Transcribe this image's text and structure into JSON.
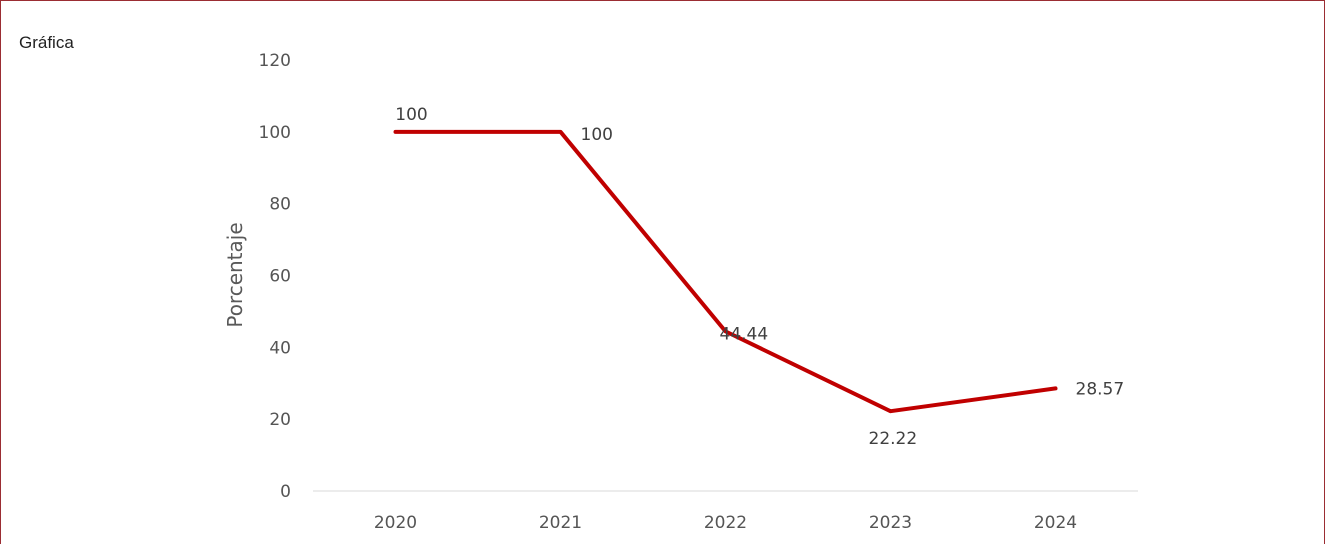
{
  "panel_label": "Gráfica",
  "colors": {
    "series": "#c00000",
    "frame": "#9b2d33",
    "axis": "#d9d9d9"
  },
  "chart_data": {
    "type": "line",
    "categories": [
      "2020",
      "2021",
      "2022",
      "2023",
      "2024"
    ],
    "series": [
      {
        "values": [
          100,
          100,
          44.44,
          22.22,
          28.57
        ]
      }
    ],
    "data_labels": [
      "100",
      "100",
      "44.44",
      "22.22",
      "28.57"
    ],
    "xlabel": "",
    "ylabel": "Porcentaje",
    "ylim": [
      0,
      120
    ],
    "yticks": [
      0,
      20,
      40,
      60,
      80,
      100,
      120
    ],
    "grid": false,
    "legend": "none"
  }
}
